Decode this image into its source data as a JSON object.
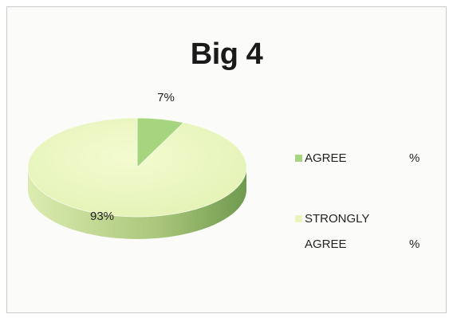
{
  "chart_data": {
    "type": "pie",
    "title": "Big 4",
    "categories": [
      "AGREE",
      "STRONGLY AGREE"
    ],
    "values": [
      7,
      93
    ],
    "data_labels": [
      "7%",
      "93%"
    ],
    "colors": [
      "#a6d47f",
      "#eaf6be"
    ],
    "legend_position": "right",
    "legend": [
      {
        "label_line1": "AGREE",
        "label_line2": "",
        "suffix": "%"
      },
      {
        "label_line1": "STRONGLY",
        "label_line2": "AGREE",
        "suffix": "%"
      }
    ],
    "style": "3d"
  }
}
